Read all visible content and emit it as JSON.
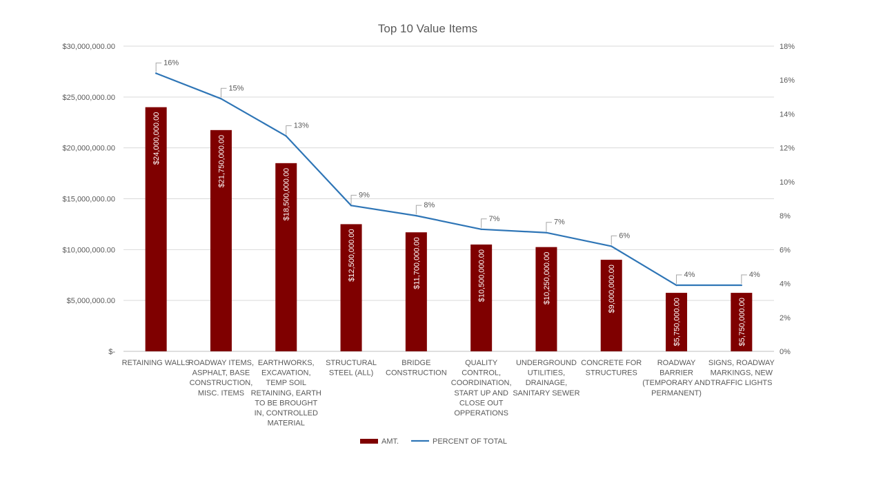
{
  "chart_data": {
    "type": "bar",
    "title": "Top 10 Value Items",
    "categories": [
      [
        "RETAINING WALLS"
      ],
      [
        "ROADWAY ITEMS,",
        "ASPHALT, BASE",
        "CONSTRUCTION,",
        "MISC. ITEMS"
      ],
      [
        "EARTHWORKS,",
        "EXCAVATION,",
        "TEMP SOIL",
        "RETAINING, EARTH",
        "TO BE BROUGHT",
        "IN, CONTROLLED",
        "MATERIAL"
      ],
      [
        "STRUCTURAL",
        "STEEL (ALL)"
      ],
      [
        "BRIDGE",
        "CONSTRUCTION"
      ],
      [
        "QUALITY",
        "CONTROL,",
        "COORDINATION,",
        "START UP AND",
        "CLOSE OUT",
        "OPPERATIONS"
      ],
      [
        "UNDERGROUND",
        "UTILITIES,",
        "DRAINAGE,",
        "SANITARY SEWER"
      ],
      [
        "CONCRETE FOR",
        "STRUCTURES"
      ],
      [
        "ROADWAY",
        "BARRIER",
        "(TEMPORARY AND",
        "PERMANENT)"
      ],
      [
        "SIGNS, ROADWAY",
        "MARKINGS, NEW",
        "TRAFFIC LIGHTS"
      ]
    ],
    "series": [
      {
        "name": "AMT.",
        "kind": "bar",
        "axis": "left",
        "color": "#7f0000",
        "values": [
          24000000,
          21750000,
          18500000,
          12500000,
          11700000,
          10500000,
          10250000,
          9000000,
          5750000,
          5750000
        ],
        "data_labels": [
          "$24,000,000.00",
          "$21,750,000.00",
          "$18,500,000.00",
          "$12,500,000.00",
          "$11,700,000.00",
          "$10,500,000.00",
          "$10,250,000.00",
          "$9,000,000.00",
          "$5,750,000.00",
          "$5,750,000.00"
        ]
      },
      {
        "name": "PERCENT OF TOTAL",
        "kind": "line",
        "axis": "right",
        "color": "#2e75b6",
        "values": [
          0.164,
          0.149,
          0.127,
          0.086,
          0.08,
          0.072,
          0.07,
          0.062,
          0.039,
          0.039
        ],
        "data_labels": [
          "16%",
          "15%",
          "13%",
          "9%",
          "8%",
          "7%",
          "7%",
          "6%",
          "4%",
          "4%"
        ]
      }
    ],
    "y_left": {
      "ylim": [
        0,
        30000000
      ],
      "ticks": [
        0,
        5000000,
        10000000,
        15000000,
        20000000,
        25000000,
        30000000
      ],
      "tick_labels": [
        "$-",
        "$5,000,000.00",
        "$10,000,000.00",
        "$15,000,000.00",
        "$20,000,000.00",
        "$25,000,000.00",
        "$30,000,000.00"
      ]
    },
    "y_right": {
      "ylim": [
        0,
        0.18
      ],
      "ticks": [
        0,
        0.02,
        0.04,
        0.06,
        0.08,
        0.1,
        0.12,
        0.14,
        0.16,
        0.18
      ],
      "tick_labels": [
        "0%",
        "2%",
        "4%",
        "6%",
        "8%",
        "10%",
        "12%",
        "14%",
        "16%",
        "18%"
      ]
    },
    "grid": true,
    "legend_position": "bottom"
  }
}
